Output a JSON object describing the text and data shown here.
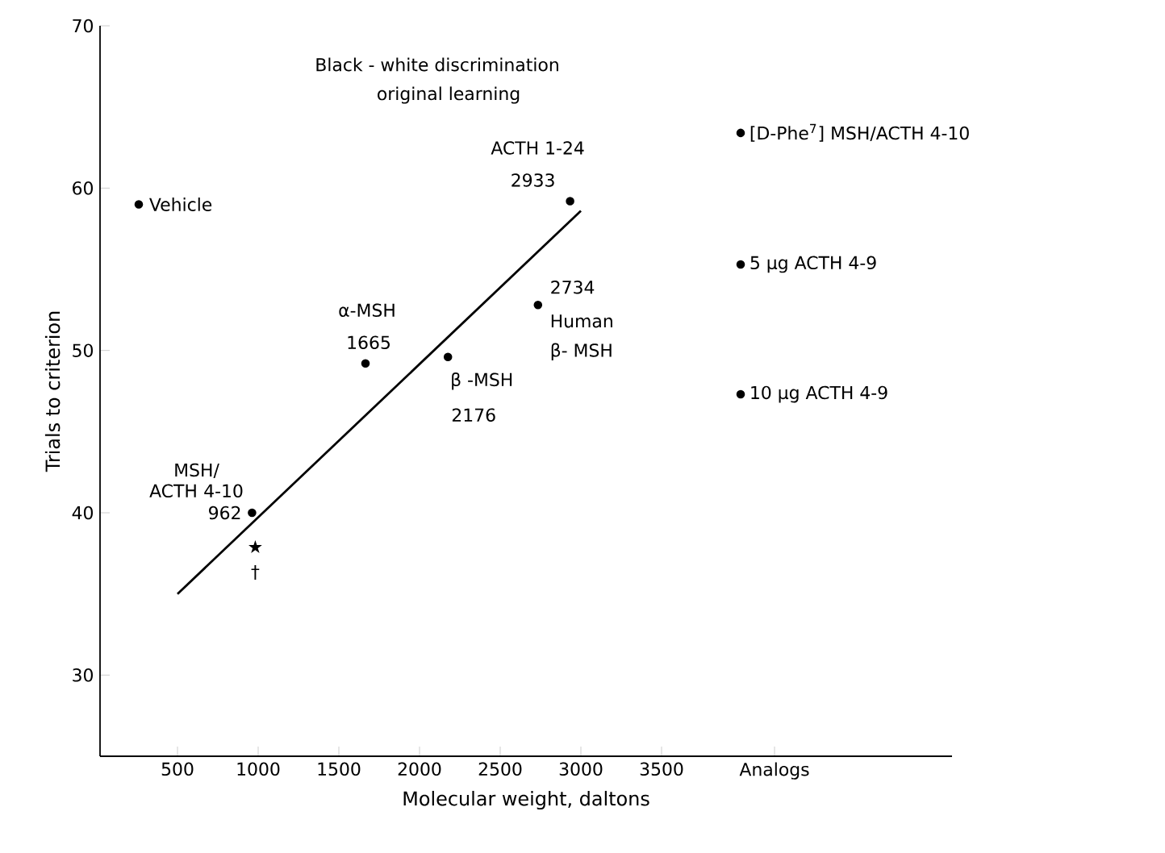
{
  "chart_data": {
    "type": "scatter",
    "title": "Black - white discrimination",
    "subtitle": "original learning",
    "xlabel": "Molecular weight, daltons",
    "ylabel": "Trials to criterion",
    "xlim": [
      20,
      5300
    ],
    "ylim": [
      25,
      70
    ],
    "xticks": [
      500,
      1000,
      1500,
      2000,
      2500,
      3000,
      3500,
      {
        "value": 4200,
        "label": "Analogs"
      }
    ],
    "yticks": [
      30,
      40,
      50,
      60,
      70
    ],
    "series": [
      {
        "color": "#000000",
        "marker": "circle",
        "x": [
          260,
          962,
          1665,
          2176,
          2734,
          2933,
          3990,
          3990,
          3990
        ],
        "values": [
          59.0,
          40.0,
          49.2,
          49.6,
          52.8,
          59.2,
          63.4,
          55.3,
          47.3
        ]
      },
      {
        "type": "line",
        "color": "#000000",
        "x": [
          500,
          3000
        ],
        "values": [
          35.0,
          58.6
        ]
      }
    ],
    "annotations": [
      {
        "text": "Vehicle",
        "x": 260,
        "y": 59.0
      },
      {
        "text": "MSH/ ACTH 4-10",
        "x": 962,
        "y": 40.0
      },
      {
        "text": "962",
        "x": 962,
        "y": 40.0
      },
      {
        "text": "α-MSH",
        "x": 1665,
        "y": 49.2
      },
      {
        "text": "1665",
        "x": 1665,
        "y": 49.2
      },
      {
        "text": "β -MSH",
        "x": 2176,
        "y": 49.6
      },
      {
        "text": "2176",
        "x": 2176,
        "y": 49.6
      },
      {
        "text": "2734",
        "x": 2734,
        "y": 52.8
      },
      {
        "text": "Human",
        "x": 2734,
        "y": 52.8
      },
      {
        "text": "β- MSH",
        "x": 2734,
        "y": 52.8
      },
      {
        "text": "ACTH 1-24",
        "x": 2933,
        "y": 59.2
      },
      {
        "text": "2933",
        "x": 2933,
        "y": 59.2
      },
      {
        "text": "[D-Phe$^{7}$] MSH/ACTH 4-10",
        "x": 3990,
        "y": 63.4
      },
      {
        "text": "5 μg ACTH 4-9",
        "x": 3990,
        "y": 55.3
      },
      {
        "text": "10 μg ACTH 4-9",
        "x": 3990,
        "y": 47.3
      },
      {
        "text": "★",
        "x": 962,
        "y": 40.0
      },
      {
        "text": "†",
        "x": 962,
        "y": 40.0
      }
    ]
  }
}
